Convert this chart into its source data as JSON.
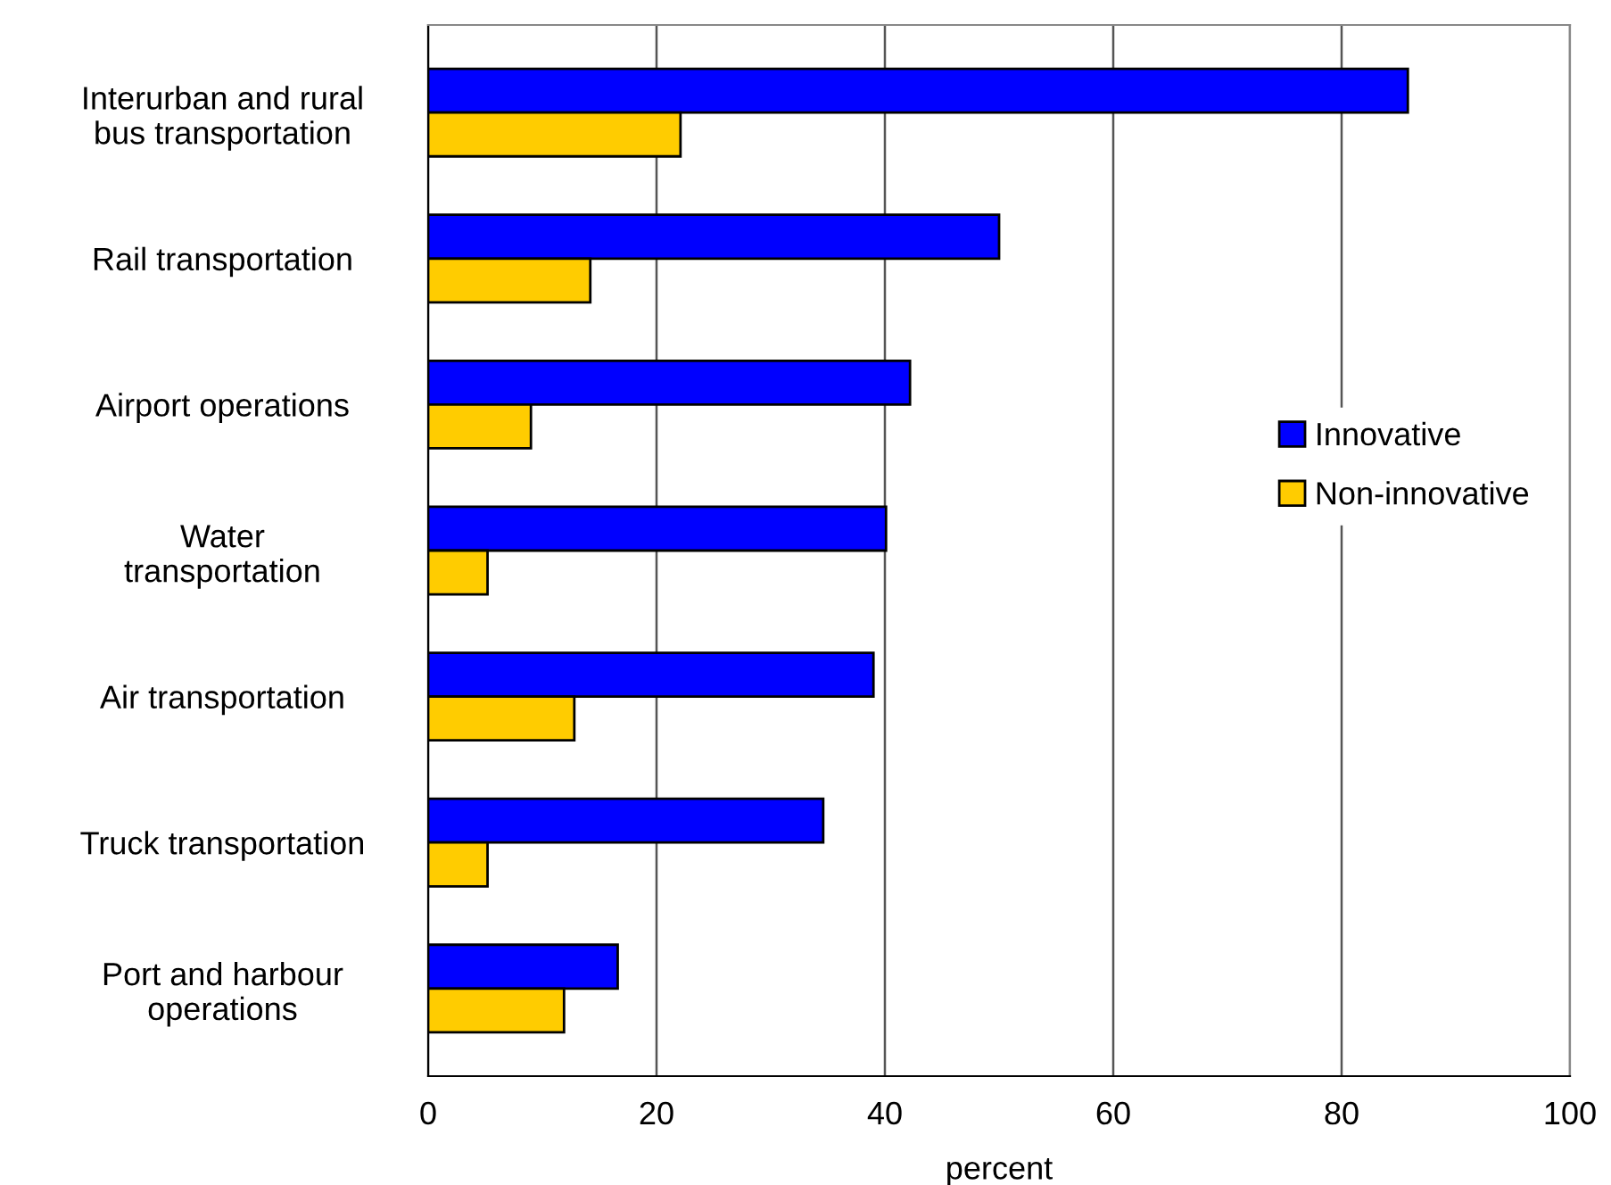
{
  "chart_data": {
    "type": "bar",
    "orientation": "horizontal",
    "xlabel": "percent",
    "categories": [
      "Interurban and rural\nbus transportation",
      "Rail transportation",
      "Airport operations",
      "Water\ntransportation",
      "Air transportation",
      "Truck transportation",
      "Port and harbour\noperations"
    ],
    "series": [
      {
        "name": "Innovative",
        "color": "#0000ff",
        "values": [
          85.8,
          50.0,
          42.2,
          40.1,
          39.0,
          34.6,
          16.6
        ]
      },
      {
        "name": "Non-innovative",
        "color": "#ffcc00",
        "values": [
          22.1,
          14.2,
          9.0,
          5.2,
          12.8,
          5.2,
          11.9
        ]
      }
    ],
    "xlim": [
      0,
      100
    ],
    "xticks": [
      0,
      20,
      40,
      60,
      80,
      100
    ],
    "grid": "x",
    "legend": "right"
  }
}
